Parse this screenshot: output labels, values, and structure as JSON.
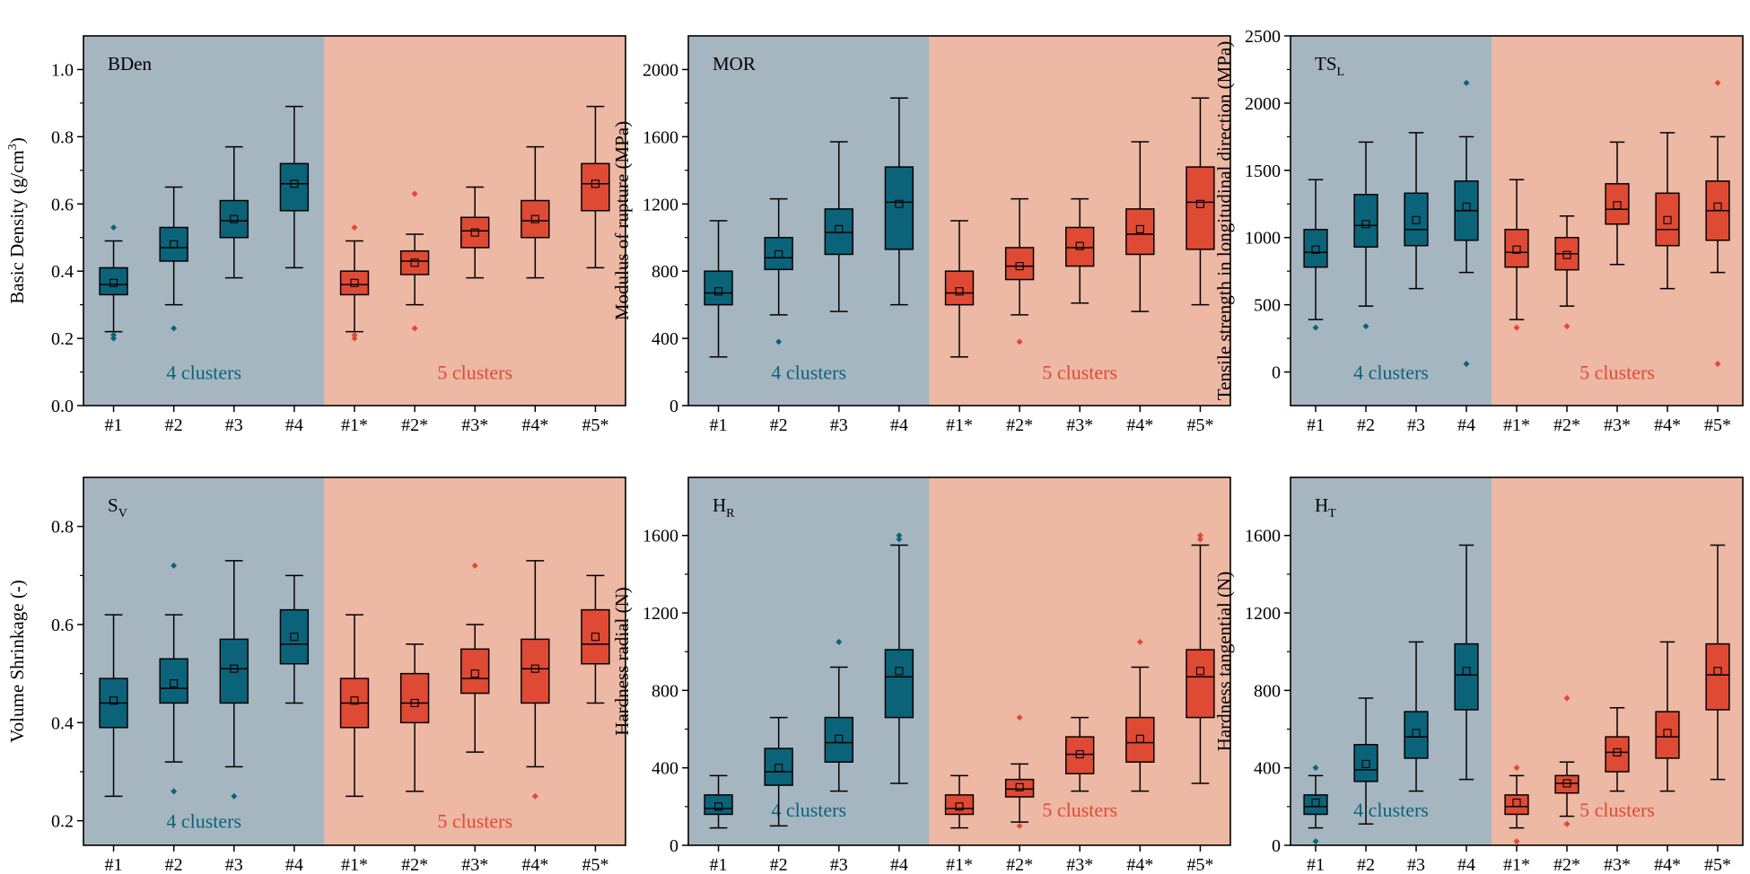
{
  "colors": {
    "bg_left": "#a6b6c1",
    "bg_right": "#edb8a4",
    "box_left": "#0b6379",
    "box_right": "#df4a34",
    "label_left": "#0b6379",
    "label_right": "#df4a34"
  },
  "chart_data": [
    {
      "type": "box",
      "id": "bden",
      "title_main": "BDen",
      "title_sub": "",
      "ylabel": "Basic Density (g/cm",
      "ylabel_sup": "3",
      "ylabel_end": ")",
      "ylim": [
        0.0,
        1.1
      ],
      "yticks": [
        0.0,
        0.2,
        0.4,
        0.6,
        0.8,
        1.0
      ],
      "ytick_labels": [
        "0.0",
        "0.2",
        "0.4",
        "0.6",
        "0.8",
        "1.0"
      ],
      "categories": [
        "#1",
        "#2",
        "#3",
        "#4",
        "#1*",
        "#2*",
        "#3*",
        "#4*",
        "#5*"
      ],
      "group_labels": [
        "4 clusters",
        "5 clusters"
      ],
      "group_label_value": 0.1,
      "boxes": [
        {
          "lo": 0.22,
          "q1": 0.33,
          "med": 0.36,
          "q3": 0.41,
          "hi": 0.49,
          "mean": 0.365,
          "out": [
            0.53,
            0.2,
            0.21
          ]
        },
        {
          "lo": 0.3,
          "q1": 0.43,
          "med": 0.47,
          "q3": 0.53,
          "hi": 0.65,
          "mean": 0.48,
          "out": [
            0.23
          ]
        },
        {
          "lo": 0.38,
          "q1": 0.5,
          "med": 0.55,
          "q3": 0.61,
          "hi": 0.77,
          "mean": 0.555,
          "out": []
        },
        {
          "lo": 0.41,
          "q1": 0.58,
          "med": 0.66,
          "q3": 0.72,
          "hi": 0.89,
          "mean": 0.66,
          "out": []
        },
        {
          "lo": 0.22,
          "q1": 0.33,
          "med": 0.36,
          "q3": 0.4,
          "hi": 0.49,
          "mean": 0.365,
          "out": [
            0.53,
            0.2,
            0.21
          ]
        },
        {
          "lo": 0.3,
          "q1": 0.39,
          "med": 0.43,
          "q3": 0.46,
          "hi": 0.51,
          "mean": 0.425,
          "out": [
            0.63,
            0.23
          ]
        },
        {
          "lo": 0.38,
          "q1": 0.47,
          "med": 0.52,
          "q3": 0.56,
          "hi": 0.65,
          "mean": 0.515,
          "out": []
        },
        {
          "lo": 0.38,
          "q1": 0.5,
          "med": 0.55,
          "q3": 0.61,
          "hi": 0.77,
          "mean": 0.555,
          "out": []
        },
        {
          "lo": 0.41,
          "q1": 0.58,
          "med": 0.66,
          "q3": 0.72,
          "hi": 0.89,
          "mean": 0.66,
          "out": []
        }
      ]
    },
    {
      "type": "box",
      "id": "mor",
      "title_main": "MOR",
      "title_sub": "",
      "ylabel": "Modulus of rupture (MPa)",
      "ylabel_sup": "",
      "ylabel_end": "",
      "ylim": [
        0,
        2200
      ],
      "yticks": [
        0,
        400,
        800,
        1200,
        1600,
        2000
      ],
      "ytick_labels": [
        "0",
        "400",
        "800",
        "1200",
        "1600",
        "2000"
      ],
      "categories": [
        "#1",
        "#2",
        "#3",
        "#4",
        "#1*",
        "#2*",
        "#3*",
        "#4*",
        "#5*"
      ],
      "group_labels": [
        "4 clusters",
        "5 clusters"
      ],
      "group_label_value": 200,
      "boxes": [
        {
          "lo": 290,
          "q1": 600,
          "med": 670,
          "q3": 800,
          "hi": 1100,
          "mean": 680,
          "out": []
        },
        {
          "lo": 540,
          "q1": 810,
          "med": 880,
          "q3": 1000,
          "hi": 1230,
          "mean": 900,
          "out": [
            380
          ]
        },
        {
          "lo": 560,
          "q1": 900,
          "med": 1030,
          "q3": 1170,
          "hi": 1570,
          "mean": 1050,
          "out": []
        },
        {
          "lo": 600,
          "q1": 930,
          "med": 1210,
          "q3": 1420,
          "hi": 1830,
          "mean": 1200,
          "out": []
        },
        {
          "lo": 290,
          "q1": 600,
          "med": 670,
          "q3": 800,
          "hi": 1100,
          "mean": 680,
          "out": []
        },
        {
          "lo": 540,
          "q1": 750,
          "med": 830,
          "q3": 940,
          "hi": 1230,
          "mean": 830,
          "out": [
            380
          ]
        },
        {
          "lo": 610,
          "q1": 830,
          "med": 940,
          "q3": 1060,
          "hi": 1230,
          "mean": 950,
          "out": []
        },
        {
          "lo": 560,
          "q1": 900,
          "med": 1020,
          "q3": 1170,
          "hi": 1570,
          "mean": 1050,
          "out": []
        },
        {
          "lo": 600,
          "q1": 930,
          "med": 1210,
          "q3": 1420,
          "hi": 1830,
          "mean": 1200,
          "out": []
        }
      ]
    },
    {
      "type": "box",
      "id": "tsl",
      "title_main": "TS",
      "title_sub": "L",
      "ylabel": "Tensile strength in longitudinal direction (MPa)",
      "ylabel_sup": "",
      "ylabel_end": "",
      "ylim": [
        -250,
        2500
      ],
      "yticks": [
        0,
        500,
        1000,
        1500,
        2000,
        2500
      ],
      "ytick_labels": [
        "0",
        "500",
        "1000",
        "1500",
        "2000",
        "2500"
      ],
      "categories": [
        "#1",
        "#2",
        "#3",
        "#4",
        "#1*",
        "#2*",
        "#3*",
        "#4*",
        "#5*"
      ],
      "group_labels": [
        "4 clusters",
        "5 clusters"
      ],
      "group_label_value": 0,
      "boxes": [
        {
          "lo": 390,
          "q1": 780,
          "med": 890,
          "q3": 1060,
          "hi": 1430,
          "mean": 910,
          "out": [
            330
          ]
        },
        {
          "lo": 490,
          "q1": 930,
          "med": 1090,
          "q3": 1320,
          "hi": 1710,
          "mean": 1100,
          "out": [
            340
          ]
        },
        {
          "lo": 620,
          "q1": 940,
          "med": 1060,
          "q3": 1330,
          "hi": 1780,
          "mean": 1130,
          "out": []
        },
        {
          "lo": 740,
          "q1": 980,
          "med": 1200,
          "q3": 1420,
          "hi": 1750,
          "mean": 1230,
          "out": [
            2150,
            60
          ]
        },
        {
          "lo": 390,
          "q1": 780,
          "med": 890,
          "q3": 1060,
          "hi": 1430,
          "mean": 910,
          "out": [
            330
          ]
        },
        {
          "lo": 490,
          "q1": 760,
          "med": 880,
          "q3": 1000,
          "hi": 1160,
          "mean": 870,
          "out": [
            340
          ]
        },
        {
          "lo": 800,
          "q1": 1100,
          "med": 1210,
          "q3": 1400,
          "hi": 1710,
          "mean": 1240,
          "out": []
        },
        {
          "lo": 620,
          "q1": 940,
          "med": 1060,
          "q3": 1330,
          "hi": 1780,
          "mean": 1130,
          "out": []
        },
        {
          "lo": 740,
          "q1": 980,
          "med": 1200,
          "q3": 1420,
          "hi": 1750,
          "mean": 1230,
          "out": [
            2150,
            60
          ]
        }
      ]
    },
    {
      "type": "box",
      "id": "sv",
      "title_main": "S",
      "title_sub": "V",
      "ylabel": "Volume Shrinkage (-)",
      "ylabel_sup": "",
      "ylabel_end": "",
      "ylim": [
        0.15,
        0.9
      ],
      "yticks": [
        0.2,
        0.4,
        0.6,
        0.8
      ],
      "ytick_labels": [
        "0.2",
        "0.4",
        "0.6",
        "0.8"
      ],
      "categories": [
        "#1",
        "#2",
        "#3",
        "#4",
        "#1*",
        "#2*",
        "#3*",
        "#4*",
        "#5*"
      ],
      "group_labels": [
        "4 clusters",
        "5 clusters"
      ],
      "group_label_value": 0.2,
      "boxes": [
        {
          "lo": 0.25,
          "q1": 0.39,
          "med": 0.44,
          "q3": 0.49,
          "hi": 0.62,
          "mean": 0.445,
          "out": []
        },
        {
          "lo": 0.32,
          "q1": 0.44,
          "med": 0.47,
          "q3": 0.53,
          "hi": 0.62,
          "mean": 0.48,
          "out": [
            0.72,
            0.26
          ]
        },
        {
          "lo": 0.31,
          "q1": 0.44,
          "med": 0.51,
          "q3": 0.57,
          "hi": 0.73,
          "mean": 0.51,
          "out": [
            0.25
          ]
        },
        {
          "lo": 0.44,
          "q1": 0.52,
          "med": 0.56,
          "q3": 0.63,
          "hi": 0.7,
          "mean": 0.575,
          "out": []
        },
        {
          "lo": 0.25,
          "q1": 0.39,
          "med": 0.44,
          "q3": 0.49,
          "hi": 0.62,
          "mean": 0.445,
          "out": []
        },
        {
          "lo": 0.26,
          "q1": 0.4,
          "med": 0.44,
          "q3": 0.5,
          "hi": 0.56,
          "mean": 0.44,
          "out": []
        },
        {
          "lo": 0.34,
          "q1": 0.46,
          "med": 0.49,
          "q3": 0.55,
          "hi": 0.6,
          "mean": 0.5,
          "out": [
            0.72
          ]
        },
        {
          "lo": 0.31,
          "q1": 0.44,
          "med": 0.51,
          "q3": 0.57,
          "hi": 0.73,
          "mean": 0.51,
          "out": [
            0.25
          ]
        },
        {
          "lo": 0.44,
          "q1": 0.52,
          "med": 0.56,
          "q3": 0.63,
          "hi": 0.7,
          "mean": 0.575,
          "out": []
        }
      ]
    },
    {
      "type": "box",
      "id": "hr",
      "title_main": "H",
      "title_sub": "R",
      "ylabel": "Hardness radial (N)",
      "ylabel_sup": "",
      "ylabel_end": "",
      "ylim": [
        0,
        1900
      ],
      "yticks": [
        0,
        400,
        800,
        1200,
        1600
      ],
      "ytick_labels": [
        "0",
        "400",
        "800",
        "1200",
        "1600"
      ],
      "categories": [
        "#1",
        "#2",
        "#3",
        "#4",
        "#1*",
        "#2*",
        "#3*",
        "#4*",
        "#5*"
      ],
      "group_labels": [
        "4 clusters",
        "5 clusters"
      ],
      "group_label_value": 185,
      "boxes": [
        {
          "lo": 90,
          "q1": 160,
          "med": 190,
          "q3": 260,
          "hi": 360,
          "mean": 200,
          "out": []
        },
        {
          "lo": 100,
          "q1": 310,
          "med": 380,
          "q3": 500,
          "hi": 660,
          "mean": 400,
          "out": []
        },
        {
          "lo": 280,
          "q1": 430,
          "med": 530,
          "q3": 660,
          "hi": 920,
          "mean": 550,
          "out": [
            1050
          ]
        },
        {
          "lo": 320,
          "q1": 660,
          "med": 870,
          "q3": 1010,
          "hi": 1550,
          "mean": 900,
          "out": [
            1600,
            1580
          ]
        },
        {
          "lo": 90,
          "q1": 160,
          "med": 190,
          "q3": 260,
          "hi": 360,
          "mean": 200,
          "out": []
        },
        {
          "lo": 120,
          "q1": 250,
          "med": 290,
          "q3": 340,
          "hi": 420,
          "mean": 300,
          "out": [
            660,
            100
          ]
        },
        {
          "lo": 280,
          "q1": 370,
          "med": 470,
          "q3": 560,
          "hi": 660,
          "mean": 470,
          "out": []
        },
        {
          "lo": 280,
          "q1": 430,
          "med": 530,
          "q3": 660,
          "hi": 920,
          "mean": 550,
          "out": [
            1050
          ]
        },
        {
          "lo": 320,
          "q1": 660,
          "med": 870,
          "q3": 1010,
          "hi": 1550,
          "mean": 900,
          "out": [
            1600,
            1580
          ]
        }
      ]
    },
    {
      "type": "box",
      "id": "ht",
      "title_main": "H",
      "title_sub": "T",
      "ylabel": "Hardness tangential (N)",
      "ylabel_sup": "",
      "ylabel_end": "",
      "ylim": [
        0,
        1900
      ],
      "yticks": [
        0,
        400,
        800,
        1200,
        1600
      ],
      "ytick_labels": [
        "0",
        "400",
        "800",
        "1200",
        "1600"
      ],
      "categories": [
        "#1",
        "#2",
        "#3",
        "#4",
        "#1*",
        "#2*",
        "#3*",
        "#4*",
        "#5*"
      ],
      "group_labels": [
        "4 clusters",
        "5 clusters"
      ],
      "group_label_value": 185,
      "boxes": [
        {
          "lo": 90,
          "q1": 160,
          "med": 200,
          "q3": 260,
          "hi": 360,
          "mean": 220,
          "out": [
            400,
            20
          ]
        },
        {
          "lo": 110,
          "q1": 330,
          "med": 390,
          "q3": 520,
          "hi": 760,
          "mean": 420,
          "out": []
        },
        {
          "lo": 280,
          "q1": 450,
          "med": 560,
          "q3": 690,
          "hi": 1050,
          "mean": 580,
          "out": []
        },
        {
          "lo": 340,
          "q1": 700,
          "med": 880,
          "q3": 1040,
          "hi": 1550,
          "mean": 900,
          "out": []
        },
        {
          "lo": 90,
          "q1": 160,
          "med": 200,
          "q3": 260,
          "hi": 360,
          "mean": 220,
          "out": [
            400,
            20
          ]
        },
        {
          "lo": 150,
          "q1": 270,
          "med": 320,
          "q3": 360,
          "hi": 430,
          "mean": 320,
          "out": [
            760,
            110
          ]
        },
        {
          "lo": 280,
          "q1": 380,
          "med": 480,
          "q3": 560,
          "hi": 710,
          "mean": 480,
          "out": []
        },
        {
          "lo": 280,
          "q1": 450,
          "med": 560,
          "q3": 690,
          "hi": 1050,
          "mean": 580,
          "out": []
        },
        {
          "lo": 340,
          "q1": 700,
          "med": 880,
          "q3": 1040,
          "hi": 1550,
          "mean": 900,
          "out": []
        }
      ]
    }
  ]
}
